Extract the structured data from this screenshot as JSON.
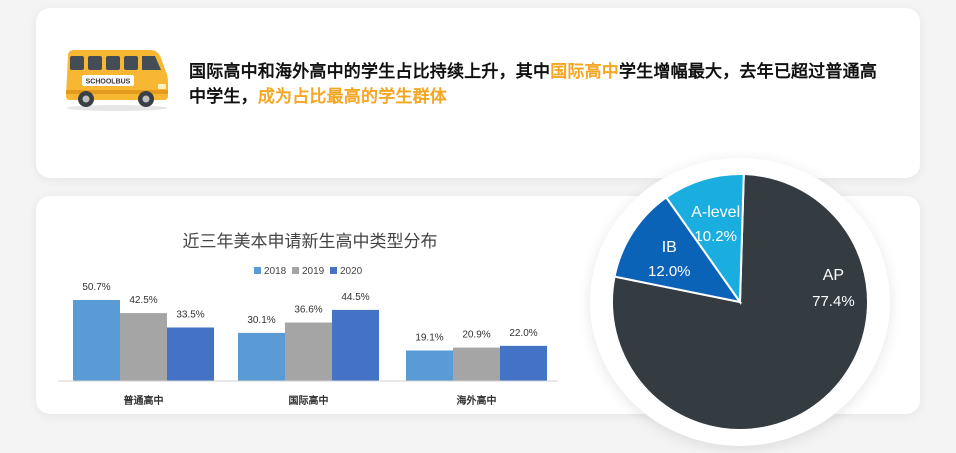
{
  "headline": {
    "part1": "国际高中和海外高中的学生占比持续上升，其中",
    "highlight1": "国际高中",
    "part2": "学生增幅最大，去年已超过普通高中学生，",
    "highlight2": "成为占比最高的学生群体"
  },
  "bus": {
    "label": "SCHOOLBUS"
  },
  "colors": {
    "highlight": "#f5a623",
    "bus_body": "#f7b733",
    "pie_dark": "#343b41",
    "pie_ib": "#0b63b8",
    "pie_alevel": "#1aaee0"
  },
  "chart_data": [
    {
      "type": "bar",
      "title": "近三年美本申请新生高中类型分布",
      "categories": [
        "普通高中",
        "国际高中",
        "海外高中"
      ],
      "series": [
        {
          "name": "2018",
          "color": "#5b9bd5",
          "values": [
            50.7,
            30.1,
            19.1
          ],
          "labels": [
            "50.7%",
            "30.1%",
            "19.1%"
          ]
        },
        {
          "name": "2019",
          "color": "#a5a5a5",
          "values": [
            42.5,
            36.6,
            20.9
          ],
          "labels": [
            "42.5%",
            "36.6%",
            "20.9%"
          ]
        },
        {
          "name": "2020",
          "color": "#4472c4",
          "values": [
            33.5,
            44.5,
            22.0
          ],
          "labels": [
            "33.5%",
            "44.5%",
            "22.0%"
          ]
        }
      ],
      "ylim": [
        0,
        55
      ],
      "grid": false,
      "legend": "top"
    },
    {
      "type": "pie",
      "slices": [
        {
          "label": "AP",
          "value": 77.4,
          "value_label": "77.4%",
          "color": "#343b41"
        },
        {
          "label": "IB",
          "value": 12.0,
          "value_label": "12.0%",
          "color": "#0b63b8"
        },
        {
          "label": "A-level",
          "value": 10.2,
          "value_label": "10.2%",
          "color": "#1aaee0"
        }
      ]
    }
  ]
}
